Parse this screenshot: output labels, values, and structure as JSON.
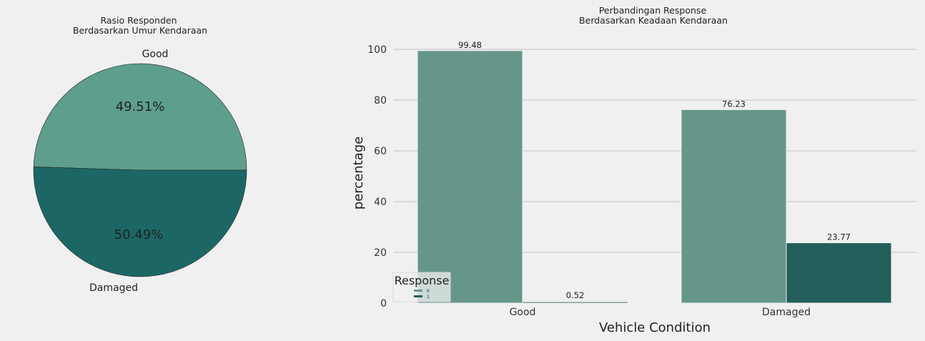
{
  "chart_data": [
    {
      "type": "pie",
      "title_line1": "Rasio Responden",
      "title_line2": "Berdasarkan Umur Kendaraan",
      "slices": [
        {
          "label": "Good",
          "value": 49.51,
          "pct_label": "49.51%",
          "color": "#5e9e8d"
        },
        {
          "label": "Damaged",
          "value": 50.49,
          "pct_label": "50.49%",
          "color": "#1c6766"
        }
      ]
    },
    {
      "type": "bar",
      "title_line1": "Perbandingan Response",
      "title_line2": "Berdasarkan Keadaan Kendaraan",
      "xlabel": "Vehicle Condition",
      "ylabel": "percentage",
      "ylim": [
        0,
        105
      ],
      "yticks": [
        0,
        20,
        40,
        60,
        80,
        100
      ],
      "categories": [
        "Good",
        "Damaged"
      ],
      "series": [
        {
          "name": "0",
          "values": [
            99.48,
            76.23
          ],
          "labels": [
            "99.48",
            "76.23"
          ],
          "color": "#66968a"
        },
        {
          "name": "1",
          "values": [
            0.52,
            23.77
          ],
          "labels": [
            "0.52",
            "23.77"
          ],
          "color": "#235e5b"
        }
      ],
      "legend": {
        "title": "Response",
        "placement": "bottom-left"
      },
      "grid": true
    }
  ]
}
